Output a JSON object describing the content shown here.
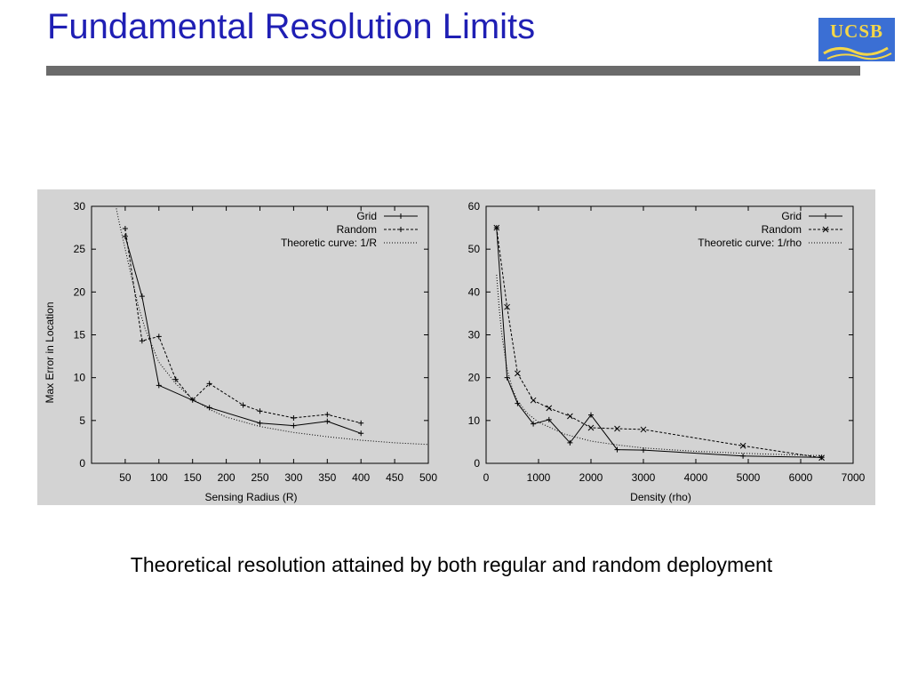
{
  "slide": {
    "title": "Fundamental Resolution Limits",
    "logo_text": "UCSB",
    "caption": "Theoretical resolution attained by both regular and random deployment"
  },
  "colors": {
    "title": "#1f1fb4",
    "rule": "#6b6b6b",
    "figure_bg": "#d3d3d3",
    "logo_bg": "#3b6fd4",
    "logo_text": "#f3d64a"
  },
  "chart_data": [
    {
      "type": "line",
      "xlabel": "Sensing Radius (R)",
      "ylabel": "Max Error in Location",
      "xlim": [
        0,
        500
      ],
      "ylim": [
        0,
        30
      ],
      "xticks": [
        50,
        100,
        150,
        200,
        250,
        300,
        350,
        400,
        450,
        500
      ],
      "yticks": [
        0,
        5,
        10,
        15,
        20,
        25,
        30
      ],
      "grid": false,
      "legend_position": "top-right",
      "series": [
        {
          "name": "Grid",
          "style": "solid",
          "marker": "+",
          "x": [
            50,
            75,
            100,
            175,
            250,
            300,
            350,
            400
          ],
          "y": [
            26.5,
            19.5,
            9.1,
            6.5,
            4.7,
            4.4,
            4.9,
            3.5
          ]
        },
        {
          "name": "Random",
          "style": "dashed",
          "marker": "+",
          "x": [
            50,
            75,
            100,
            125,
            150,
            175,
            225,
            250,
            300,
            350,
            400
          ],
          "y": [
            27.4,
            14.3,
            14.8,
            9.8,
            7.4,
            9.3,
            6.8,
            6.1,
            5.3,
            5.7,
            4.7
          ]
        },
        {
          "name": "Theoretic curve: 1/R",
          "style": "dotted",
          "marker": "none",
          "x": [
            30,
            40,
            50,
            60,
            70,
            80,
            100,
            125,
            150,
            175,
            200,
            250,
            300,
            350,
            400,
            450,
            500
          ],
          "y": [
            32.5,
            28.5,
            25,
            21.5,
            18.2,
            15.6,
            11.8,
            9.3,
            7.5,
            6.3,
            5.4,
            4.3,
            3.6,
            3.1,
            2.7,
            2.4,
            2.2
          ]
        }
      ]
    },
    {
      "type": "line",
      "xlabel": "Density (rho)",
      "ylabel": "",
      "xlim": [
        0,
        7000
      ],
      "ylim": [
        0,
        60
      ],
      "xticks": [
        0,
        1000,
        2000,
        3000,
        4000,
        5000,
        6000,
        7000
      ],
      "yticks": [
        0,
        10,
        20,
        30,
        40,
        50,
        60
      ],
      "grid": false,
      "legend_position": "top-right",
      "series": [
        {
          "name": "Grid",
          "style": "solid",
          "marker": "+",
          "x": [
            200,
            400,
            600,
            900,
            1200,
            1600,
            2000,
            2500,
            3000,
            4900,
            6400
          ],
          "y": [
            55,
            20,
            14,
            9.2,
            10.2,
            4.8,
            11.3,
            3.2,
            3.1,
            1.7,
            1.4
          ]
        },
        {
          "name": "Random",
          "style": "dashed",
          "marker": "x",
          "x": [
            200,
            400,
            600,
            900,
            1200,
            1600,
            2000,
            2500,
            3000,
            4900,
            6400
          ],
          "y": [
            55,
            36.5,
            21,
            14.7,
            12.9,
            11,
            8.3,
            8.1,
            7.9,
            4.1,
            1.3
          ]
        },
        {
          "name": "Theoretic curve: 1/rho",
          "style": "dotted",
          "marker": "none",
          "x": [
            200,
            250,
            300,
            400,
            500,
            600,
            800,
            1000,
            1500,
            2000,
            2500,
            3000,
            4000,
            5000,
            6000,
            6400
          ],
          "y": [
            44,
            36,
            30,
            22,
            17.5,
            14.5,
            11.5,
            9.6,
            6.8,
            5.2,
            4.3,
            3.6,
            2.8,
            2.3,
            1.9,
            1.8
          ]
        }
      ]
    }
  ]
}
